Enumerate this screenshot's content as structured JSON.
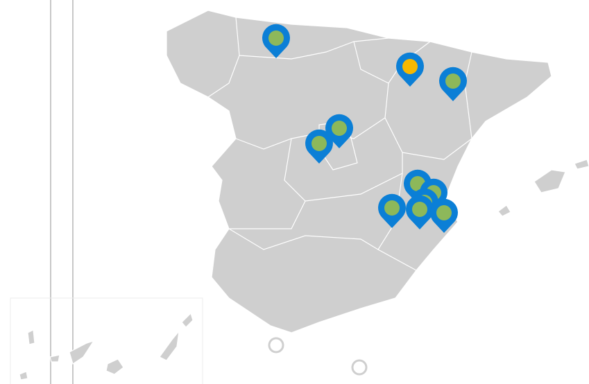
{
  "markers": [
    {
      "color": "#8db85a"
    },
    {
      "color": "#f5b800"
    },
    {
      "color": "#8db85a"
    },
    {
      "color": "#8db85a"
    },
    {
      "color": "#8db85a"
    },
    {
      "color": "#8db85a"
    },
    {
      "color": "#8db85a"
    },
    {
      "color": "#8db85a"
    },
    {
      "color": "#8db85a"
    },
    {
      "color": "#8db85a"
    },
    {
      "color": "#8db85a"
    }
  ],
  "pin_color": "#0b7fd6"
}
